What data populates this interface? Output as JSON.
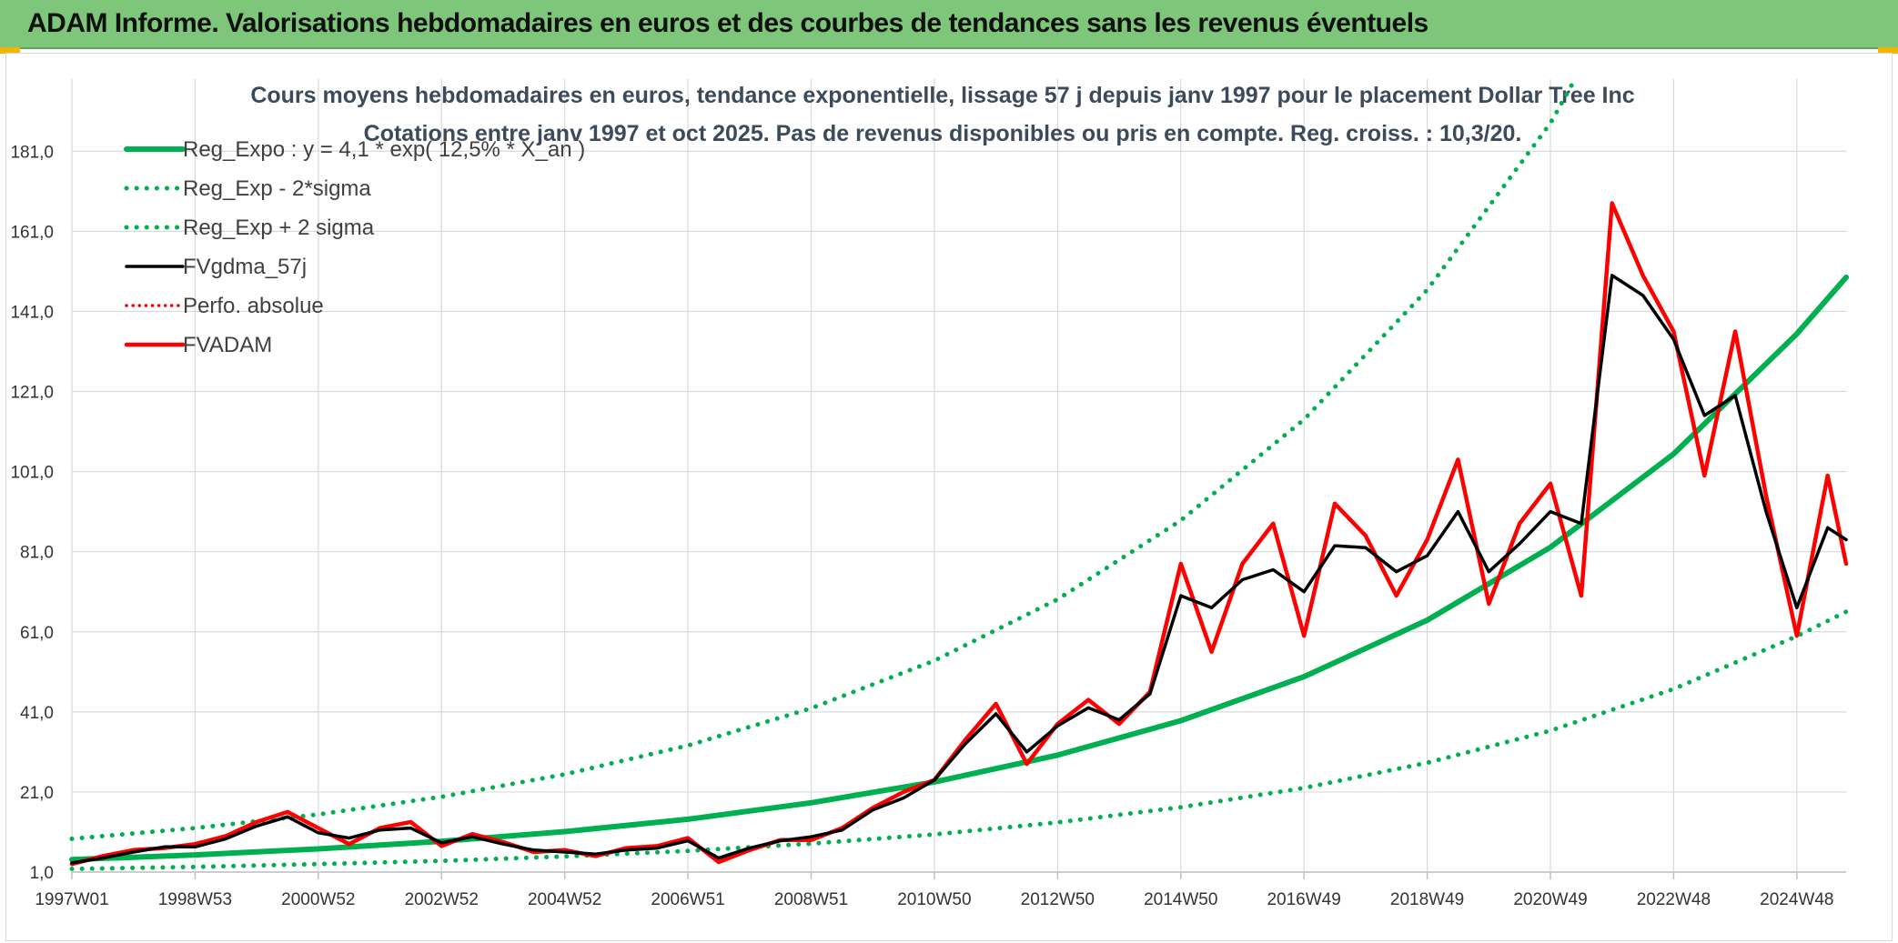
{
  "header": {
    "title": "ADAM Informe. Valorisations hebdomadaires en euros et des courbes de tendances sans les revenus éventuels"
  },
  "colors": {
    "banner": "#7dc67a",
    "trend": "#00b050",
    "smooth": "#000000",
    "price": "#ff0000"
  },
  "chart_data": {
    "type": "line",
    "title": "Cours moyens hebdomadaires en euros, tendance exponentielle, lissage 57 j depuis janv 1997 pour le placement Dollar Tree Inc",
    "subtitle": "Cotations entre janv 1997 et oct 2025. Pas de revenus disponibles ou pris en compte. Reg. croiss. : 10,3/20.",
    "xlabel": "",
    "ylabel": "",
    "ylim": [
      1,
      199
    ],
    "yticks": [
      "1,0",
      "21,0",
      "41,0",
      "61,0",
      "81,0",
      "101,0",
      "121,0",
      "141,0",
      "161,0",
      "181,0"
    ],
    "yticks_values": [
      1,
      21,
      41,
      61,
      81,
      101,
      121,
      141,
      161,
      181
    ],
    "xlim": [
      1997.0,
      2025.8
    ],
    "xticks": [
      "1997W01",
      "1998W53",
      "2000W52",
      "2002W52",
      "2004W52",
      "2006W51",
      "2008W51",
      "2010W50",
      "2012W50",
      "2014W50",
      "2016W49",
      "2018W49",
      "2020W49",
      "2022W48",
      "2024W48"
    ],
    "xticks_values": [
      1997.0,
      1999.0,
      2001.0,
      2003.0,
      2005.0,
      2007.0,
      2009.0,
      2011.0,
      2013.0,
      2015.0,
      2017.0,
      2019.0,
      2021.0,
      2023.0,
      2025.0
    ],
    "grid": true,
    "legend_position": "top-left",
    "series": [
      {
        "name": "Reg_Expo : y = 4,1 * exp( 12,5% *  X_an )",
        "kind": "trend",
        "style": "solid",
        "color": "#00b050",
        "x": [
          1997.0,
          1999.0,
          2001.0,
          2003.0,
          2005.0,
          2007.0,
          2009.0,
          2011.0,
          2013.0,
          2015.0,
          2017.0,
          2019.0,
          2021.0,
          2023.0,
          2025.0,
          2025.8
        ],
        "values": [
          4.1,
          5.3,
          6.8,
          8.7,
          11.1,
          14.2,
          18.3,
          23.5,
          30.2,
          38.8,
          49.8,
          63.9,
          82.1,
          105.4,
          135.4,
          149.5
        ]
      },
      {
        "name": "Reg_Exp - 2*sigma",
        "kind": "lower",
        "style": "dotted",
        "color": "#00b050",
        "x": [
          1997.0,
          1999.0,
          2001.0,
          2003.0,
          2005.0,
          2007.0,
          2009.0,
          2011.0,
          2013.0,
          2015.0,
          2017.0,
          2019.0,
          2021.0,
          2023.0,
          2025.0,
          2025.8
        ],
        "values": [
          1.8,
          2.3,
          3.0,
          3.8,
          4.9,
          6.3,
          8.1,
          10.4,
          13.4,
          17.2,
          22.0,
          28.3,
          36.3,
          46.7,
          59.9,
          66.0
        ]
      },
      {
        "name": "Reg_Exp + 2 sigma",
        "kind": "upper",
        "style": "dotted",
        "color": "#00b050",
        "x": [
          1997.0,
          1999.0,
          2001.0,
          2003.0,
          2005.0,
          2007.0,
          2009.0,
          2011.0,
          2013.0,
          2015.0,
          2017.0,
          2019.0,
          2021.0,
          2021.4
        ],
        "values": [
          9.3,
          12.0,
          15.4,
          19.8,
          25.4,
          32.6,
          41.9,
          53.8,
          69.1,
          88.8,
          114.0,
          146.4,
          188.0,
          199.0
        ]
      },
      {
        "name": "FVgdma_57j",
        "kind": "smooth",
        "style": "solid",
        "color": "#000000",
        "x": [
          1997.0,
          1997.5,
          1998.0,
          1998.5,
          1999.0,
          1999.5,
          2000.0,
          2000.5,
          2001.0,
          2001.5,
          2002.0,
          2002.5,
          2003.0,
          2003.5,
          2004.0,
          2004.5,
          2005.0,
          2005.5,
          2006.0,
          2006.5,
          2007.0,
          2007.5,
          2008.0,
          2008.5,
          2009.0,
          2009.5,
          2010.0,
          2010.5,
          2011.0,
          2011.5,
          2012.0,
          2012.5,
          2013.0,
          2013.5,
          2014.0,
          2014.5,
          2015.0,
          2015.5,
          2016.0,
          2016.5,
          2017.0,
          2017.5,
          2018.0,
          2018.5,
          2019.0,
          2019.5,
          2020.0,
          2020.5,
          2021.0,
          2021.5,
          2022.0,
          2022.5,
          2023.0,
          2023.5,
          2024.0,
          2024.5,
          2025.0,
          2025.5,
          2025.8
        ],
        "values": [
          3.3,
          4.5,
          6.0,
          7.3,
          7.3,
          9.3,
          12.5,
          14.8,
          10.8,
          9.5,
          11.5,
          12.0,
          8.3,
          9.8,
          8.0,
          6.5,
          6.0,
          5.5,
          6.5,
          7.0,
          8.8,
          4.5,
          7.0,
          8.8,
          9.8,
          11.5,
          16.5,
          19.5,
          24.0,
          33.0,
          40.5,
          31.0,
          37.5,
          42.0,
          39.0,
          45.5,
          70.0,
          67.0,
          74.0,
          76.5,
          71.0,
          82.5,
          82.0,
          76.0,
          80.0,
          91.0,
          76.0,
          83.0,
          91.0,
          88.0,
          150.0,
          145.0,
          134.0,
          115.0,
          120.0,
          91.0,
          67.0,
          87.0,
          84.0
        ]
      },
      {
        "name": "Perfo. absolue",
        "kind": "perf",
        "style": "dotted",
        "color": "#ff0000",
        "x": [],
        "values": []
      },
      {
        "name": "FVADAM",
        "kind": "price",
        "style": "solid",
        "color": "#ff0000",
        "x": [
          1997.0,
          1997.5,
          1998.0,
          1998.5,
          1999.0,
          1999.5,
          2000.0,
          2000.5,
          2001.0,
          2001.5,
          2002.0,
          2002.5,
          2003.0,
          2003.5,
          2004.0,
          2004.5,
          2005.0,
          2005.5,
          2006.0,
          2006.5,
          2007.0,
          2007.5,
          2008.0,
          2008.5,
          2009.0,
          2009.5,
          2010.0,
          2010.5,
          2011.0,
          2011.5,
          2012.0,
          2012.5,
          2013.0,
          2013.5,
          2014.0,
          2014.5,
          2015.0,
          2015.5,
          2016.0,
          2016.5,
          2017.0,
          2017.5,
          2018.0,
          2018.5,
          2019.0,
          2019.5,
          2020.0,
          2020.5,
          2021.0,
          2021.5,
          2022.0,
          2022.5,
          2023.0,
          2023.5,
          2024.0,
          2024.5,
          2025.0,
          2025.5,
          2025.8
        ],
        "values": [
          3.0,
          5.0,
          6.5,
          7.0,
          8.0,
          10.0,
          13.5,
          16.0,
          12.0,
          8.0,
          12.0,
          13.5,
          7.5,
          10.5,
          8.5,
          6.0,
          6.5,
          5.0,
          7.0,
          7.5,
          9.5,
          3.5,
          6.5,
          9.0,
          9.0,
          12.0,
          17.0,
          21.0,
          24.0,
          34.0,
          43.0,
          28.0,
          38.0,
          44.0,
          38.0,
          46.0,
          78.0,
          56.0,
          78.0,
          88.0,
          60.0,
          93.0,
          85.0,
          70.0,
          84.0,
          104.0,
          68.0,
          88.0,
          98.0,
          70.0,
          168.0,
          150.0,
          136.0,
          100.0,
          136.0,
          95.0,
          60.0,
          100.0,
          78.0
        ]
      }
    ]
  }
}
